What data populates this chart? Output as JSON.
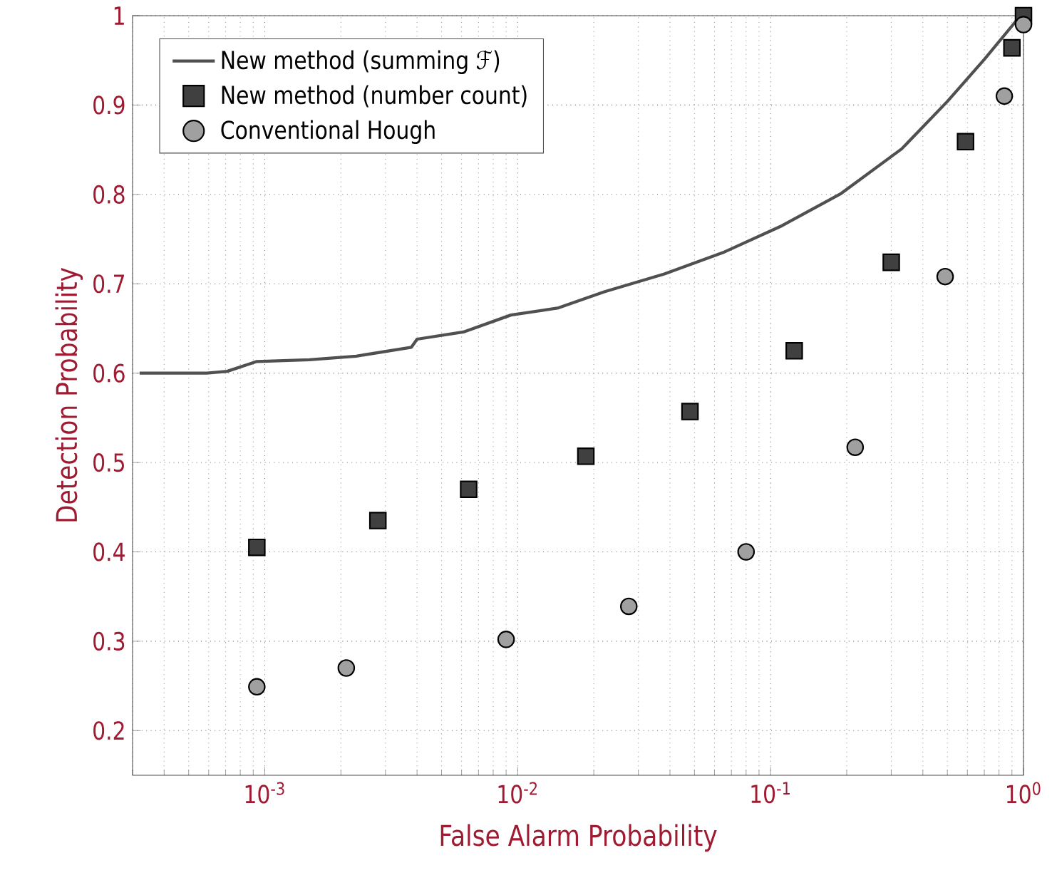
{
  "chart_data": {
    "type": "scatter",
    "xlabel": "False Alarm Probability",
    "ylabel": "Detection Probability",
    "log": "x",
    "grid": true,
    "legend": "top left",
    "xlim": [
      0.0003,
      1
    ],
    "ylim": [
      0.15,
      1
    ],
    "xticks": [
      {
        "value": 0.001,
        "label": "10$^{-3}$"
      },
      {
        "value": 0.01,
        "label": "10$^{-2}$"
      },
      {
        "value": 0.1,
        "label": "10$^{-1}$"
      },
      {
        "value": 1,
        "label": "10$^{0}$"
      }
    ],
    "yticks": [
      0.2,
      0.3,
      0.4,
      0.5,
      0.6,
      0.7,
      0.8,
      0.9,
      1
    ],
    "series": [
      {
        "name": "New method (summing ℱ)",
        "type": "line",
        "color": "#505050",
        "x": [
          0.00032,
          0.00059,
          0.00071,
          0.00093,
          0.0015,
          0.0023,
          0.0038,
          0.004,
          0.0061,
          0.0094,
          0.0145,
          0.022,
          0.038,
          0.065,
          0.111,
          0.19,
          0.33,
          0.5,
          0.7,
          0.96,
          1
        ],
        "values": [
          0.6,
          0.6,
          0.602,
          0.613,
          0.615,
          0.619,
          0.629,
          0.638,
          0.646,
          0.665,
          0.673,
          0.691,
          0.711,
          0.735,
          0.765,
          0.801,
          0.851,
          0.904,
          0.951,
          0.998,
          1
        ]
      },
      {
        "name": "New method (number count)",
        "marker": "square",
        "color": "#404040",
        "x": [
          0.00093,
          0.0028,
          0.0064,
          0.0186,
          0.048,
          0.124,
          0.3,
          0.59,
          0.9,
          1
        ],
        "values": [
          0.405,
          0.435,
          0.47,
          0.507,
          0.557,
          0.625,
          0.724,
          0.859,
          0.964,
          1
        ]
      },
      {
        "name": "Conventional Hough",
        "marker": "circle",
        "color": "#a0a0a0",
        "x": [
          0.00093,
          0.0021,
          0.009,
          0.0275,
          0.08,
          0.216,
          0.49,
          0.84,
          1
        ],
        "values": [
          0.249,
          0.27,
          0.302,
          0.339,
          0.4,
          0.517,
          0.708,
          0.91,
          0.99
        ]
      }
    ]
  }
}
